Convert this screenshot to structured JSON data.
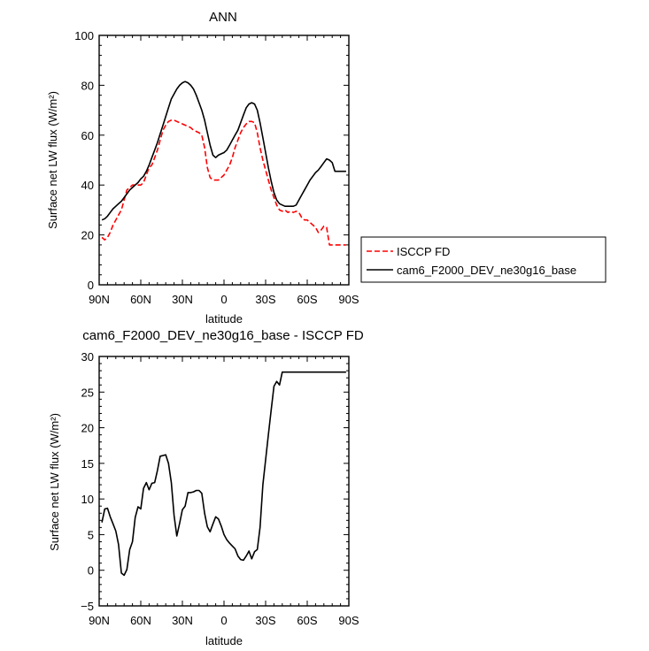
{
  "chart_data": [
    {
      "type": "line",
      "title": "ANN",
      "xlabel": "latitude",
      "ylabel": "Surface net LW flux (W/m²)",
      "xlim": [
        90,
        -90
      ],
      "ylim": [
        0,
        100
      ],
      "xticks": [
        90,
        60,
        30,
        0,
        -30,
        -60,
        -90
      ],
      "xtick_labels": [
        "90N",
        "60N",
        "30N",
        "0",
        "30S",
        "60S",
        "90S"
      ],
      "yticks": [
        0,
        20,
        40,
        60,
        80,
        100
      ],
      "ytick_labels": [
        "0",
        "20",
        "40",
        "60",
        "80",
        "100"
      ],
      "legend": "outside-right",
      "grid": false,
      "series": [
        {
          "name": "ISCCP FD",
          "color": "#ff0000",
          "dash": "dashed",
          "x": [
            88,
            86,
            84,
            82,
            80,
            78,
            76,
            74,
            72,
            70,
            68,
            66,
            64,
            62,
            60,
            58,
            56,
            54,
            52,
            50,
            48,
            46,
            44,
            42,
            40,
            38,
            36,
            34,
            32,
            30,
            28,
            26,
            24,
            22,
            20,
            18,
            16,
            14,
            12,
            10,
            8,
            6,
            4,
            2,
            0,
            -2,
            -4,
            -6,
            -8,
            -10,
            -12,
            -14,
            -16,
            -18,
            -20,
            -22,
            -24,
            -26,
            -28,
            -30,
            -32,
            -34,
            -36,
            -38,
            -40,
            -42,
            -44,
            -46,
            -48,
            -50,
            -52,
            -54,
            -56,
            -58,
            -60,
            -62,
            -64,
            -66,
            -68,
            -70,
            -72,
            -74,
            -76,
            -78,
            -80,
            -82,
            -84,
            -86,
            -88
          ],
          "y": [
            19,
            18,
            19,
            21,
            24,
            26,
            28,
            30,
            34,
            38,
            39,
            40,
            40,
            40,
            40,
            41,
            44,
            47,
            48,
            51,
            54,
            58,
            62,
            64,
            65.5,
            66,
            66,
            65.5,
            65,
            64.5,
            64,
            63.5,
            63,
            62,
            61.5,
            61,
            60,
            55,
            47,
            43,
            42,
            42,
            42,
            43,
            44,
            46,
            48,
            51,
            55,
            58,
            61,
            63,
            64.5,
            65.5,
            65.5,
            65,
            61,
            55,
            50,
            46,
            42,
            38,
            35,
            32,
            30,
            29.5,
            30,
            29,
            29.5,
            29,
            29.5,
            29,
            27,
            26,
            26,
            25,
            24,
            23,
            21,
            22,
            23.5,
            23,
            16,
            16,
            16,
            16,
            16,
            16,
            16
          ]
        },
        {
          "name": "cam6_F2000_DEV_ne30g16_base",
          "color": "#000000",
          "dash": "solid",
          "x": [
            88,
            86,
            84,
            82,
            80,
            78,
            76,
            74,
            72,
            70,
            68,
            66,
            64,
            62,
            60,
            58,
            56,
            54,
            52,
            50,
            48,
            46,
            44,
            42,
            40,
            38,
            36,
            34,
            32,
            30,
            28,
            26,
            24,
            22,
            20,
            18,
            16,
            14,
            12,
            10,
            8,
            6,
            4,
            2,
            0,
            -2,
            -4,
            -6,
            -8,
            -10,
            -12,
            -14,
            -16,
            -18,
            -20,
            -22,
            -24,
            -26,
            -28,
            -30,
            -32,
            -34,
            -36,
            -38,
            -40,
            -42,
            -44,
            -46,
            -48,
            -50,
            -52,
            -54,
            -56,
            -58,
            -60,
            -62,
            -64,
            -66,
            -68,
            -70,
            -72,
            -74,
            -76,
            -78,
            -80,
            -82,
            -84,
            -86,
            -88
          ],
          "y": [
            26,
            26.5,
            27.5,
            29,
            30.5,
            31.5,
            32.5,
            33.5,
            35,
            36.5,
            38,
            39,
            40,
            41,
            42.5,
            43.5,
            45.5,
            48,
            51,
            54,
            57,
            60.5,
            64,
            67.5,
            71,
            74.5,
            76.5,
            78.5,
            80,
            81,
            81.5,
            81,
            80,
            78.5,
            76,
            73,
            70,
            66,
            61,
            56,
            52,
            51,
            52,
            52.5,
            53,
            54,
            56,
            58,
            60,
            62,
            65,
            68,
            71,
            72.5,
            73,
            72.5,
            70,
            65,
            59,
            53,
            47,
            41.5,
            37,
            34,
            32.5,
            32,
            31.5,
            31.5,
            31.5,
            31.5,
            32,
            34,
            36,
            38,
            40,
            42,
            43.5,
            45,
            46,
            47.5,
            49,
            50.5,
            50,
            49,
            45.5,
            45.5,
            45.5,
            45.5,
            45.5
          ]
        }
      ]
    },
    {
      "type": "line",
      "title": "cam6_F2000_DEV_ne30g16_base - ISCCP FD",
      "xlabel": "latitude",
      "ylabel": "Surface net LW flux (W/m²)",
      "xlim": [
        90,
        -90
      ],
      "ylim": [
        -5,
        30
      ],
      "xticks": [
        90,
        60,
        30,
        0,
        -30,
        -60,
        -90
      ],
      "xtick_labels": [
        "90N",
        "60N",
        "30N",
        "0",
        "30S",
        "60S",
        "90S"
      ],
      "yticks": [
        -5,
        0,
        5,
        10,
        15,
        20,
        25,
        30
      ],
      "ytick_labels": [
        "−5",
        "0",
        "5",
        "10",
        "15",
        "20",
        "25",
        "30"
      ],
      "grid": false,
      "series": [
        {
          "color": "#000000",
          "dash": "solid",
          "x": [
            88,
            86,
            84,
            82,
            80,
            78,
            76,
            74,
            72,
            70,
            68,
            66,
            64,
            62,
            60,
            58,
            56,
            54,
            52,
            50,
            48,
            46,
            44,
            42,
            40,
            38,
            36,
            34,
            32,
            30,
            28,
            26,
            24,
            22,
            20,
            18,
            16,
            14,
            12,
            10,
            8,
            6,
            4,
            2,
            0,
            -2,
            -4,
            -6,
            -8,
            -10,
            -12,
            -14,
            -16,
            -18,
            -20,
            -22,
            -24,
            -26,
            -28,
            -30,
            -32,
            -34,
            -36,
            -38,
            -40,
            -42,
            -44,
            -46,
            -48,
            -50,
            -52,
            -54,
            -56,
            -58,
            -60,
            -62,
            -64,
            -66,
            -68,
            -70,
            -72,
            -74,
            -76,
            -78,
            -80,
            -82,
            -84,
            -86,
            -88
          ],
          "y": [
            6.7,
            8.6,
            8.7,
            7.5,
            6.5,
            5.5,
            3.6,
            -0.4,
            -0.7,
            0.1,
            2.9,
            4.0,
            7.4,
            8.9,
            8.6,
            11.5,
            12.3,
            11.3,
            12.2,
            12.3,
            14.0,
            16.0,
            16.1,
            16.2,
            15.0,
            12.3,
            7.7,
            4.8,
            6.6,
            8.5,
            9.0,
            10.9,
            10.9,
            11.0,
            11.2,
            11.2,
            10.8,
            8.0,
            6.1,
            5.4,
            6.5,
            7.5,
            7.2,
            6.2,
            5.0,
            4.3,
            3.8,
            3.4,
            3.0,
            2.0,
            1.5,
            1.4,
            2.0,
            2.7,
            1.6,
            2.6,
            2.9,
            6.0,
            12.0,
            15.5,
            19.0,
            22.5,
            25.8,
            26.5,
            26.0,
            27.8,
            27.8,
            27.8,
            27.8,
            27.8,
            27.8,
            27.8,
            27.8,
            27.8,
            27.8,
            27.8,
            27.8,
            27.8,
            27.8,
            27.8,
            27.8,
            27.8,
            27.8,
            27.8,
            27.8,
            27.8,
            27.8,
            27.8,
            27.8
          ]
        }
      ]
    }
  ]
}
